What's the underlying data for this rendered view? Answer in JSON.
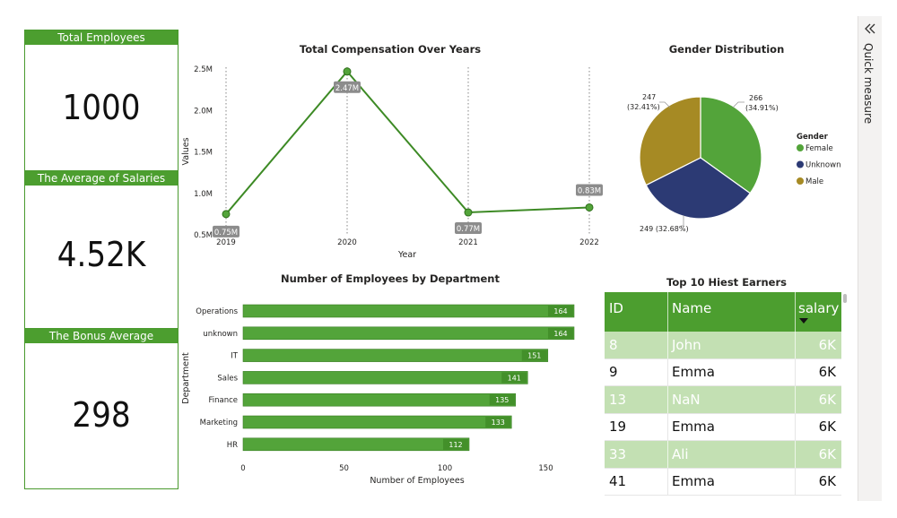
{
  "kpis": [
    {
      "label": "Total Employees",
      "value": "1000"
    },
    {
      "label": "The Average of Salaries",
      "value": "4.52K"
    },
    {
      "label": "The Bonus Average",
      "value": "298"
    }
  ],
  "pane": {
    "label": "Quick measure",
    "icon": "chevrons-left-icon"
  },
  "colors": {
    "green": "#4c9e2f",
    "green_dark": "#3d8a25",
    "male": "#a68a24",
    "unknown": "#2c3a74",
    "female": "#53a43a",
    "highlight_row": "#c3e0b3"
  },
  "chart_data": [
    {
      "type": "line",
      "title": "Total Compensation Over Years",
      "xlabel": "Year",
      "ylabel": "Values",
      "x": [
        "2019",
        "2020",
        "2021",
        "2022"
      ],
      "values": [
        0.75,
        2.47,
        0.77,
        0.83
      ],
      "data_labels": [
        "0.75M",
        "2.47M",
        "0.77M",
        "0.83M"
      ],
      "yticks": [
        "0.5M",
        "1.0M",
        "1.5M",
        "2.0M",
        "2.5M"
      ],
      "ylim": [
        0.5,
        2.5
      ],
      "unit": "M"
    },
    {
      "type": "pie",
      "title": "Gender Distribution",
      "legend_title": "Gender",
      "legend_position": "right",
      "slices": [
        {
          "name": "Female",
          "value": 266,
          "label": "266\n(34.91%)"
        },
        {
          "name": "Unknown",
          "value": 249,
          "label": "249 (32.68%)"
        },
        {
          "name": "Male",
          "value": 247,
          "label": "247\n(32.41%)"
        }
      ]
    },
    {
      "type": "bar",
      "orientation": "horizontal",
      "title": "Number of Employees by Department",
      "xlabel": "Number of Employees",
      "ylabel": "Department",
      "categories": [
        "Operations",
        "unknown",
        "IT",
        "Sales",
        "Finance",
        "Marketing",
        "HR"
      ],
      "values": [
        164,
        164,
        151,
        141,
        135,
        133,
        112
      ],
      "xticks": [
        "0",
        "50",
        "100",
        "150"
      ],
      "xlim": [
        0,
        165
      ]
    },
    {
      "type": "table",
      "title": "Top 10 Hiest Earners",
      "columns": [
        "ID",
        "Name",
        "salary"
      ],
      "sorted_column": "salary",
      "rows": [
        {
          "id": "8",
          "name": "John",
          "salary": "6K",
          "highlight": true
        },
        {
          "id": "9",
          "name": "Emma",
          "salary": "6K",
          "highlight": false
        },
        {
          "id": "13",
          "name": "NaN",
          "salary": "6K",
          "highlight": true
        },
        {
          "id": "19",
          "name": "Emma",
          "salary": "6K",
          "highlight": false
        },
        {
          "id": "33",
          "name": "Ali",
          "salary": "6K",
          "highlight": true
        },
        {
          "id": "41",
          "name": "Emma",
          "salary": "6K",
          "highlight": false
        }
      ]
    }
  ]
}
